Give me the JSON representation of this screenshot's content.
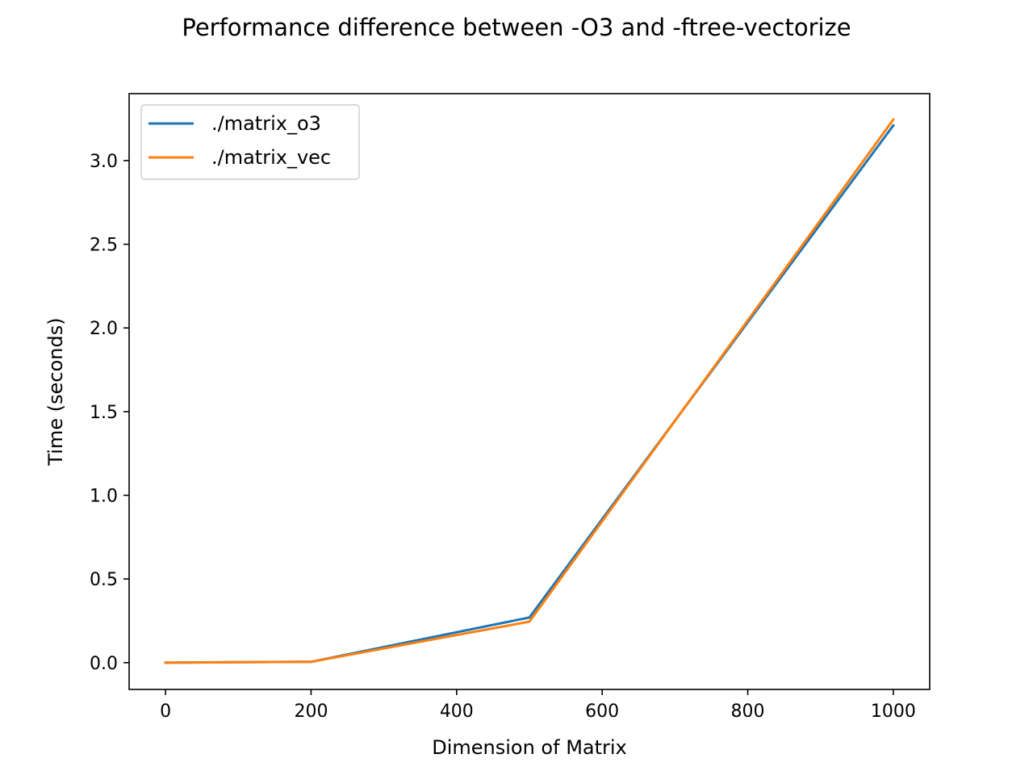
{
  "chart_data": {
    "type": "line",
    "title": "Performance difference between -O3 and -ftree-vectorize",
    "xlabel": "Dimension of Matrix",
    "ylabel": "Time (seconds)",
    "xlim": [
      -50,
      1050
    ],
    "ylim": [
      -0.16,
      3.4
    ],
    "xticks": [
      0,
      200,
      400,
      600,
      800,
      1000
    ],
    "xtick_labels": [
      "0",
      "200",
      "400",
      "600",
      "800",
      "1000"
    ],
    "yticks": [
      0.0,
      0.5,
      1.0,
      1.5,
      2.0,
      2.5,
      3.0
    ],
    "ytick_labels": [
      "0.0",
      "0.5",
      "1.0",
      "1.5",
      "2.0",
      "2.5",
      "3.0"
    ],
    "grid": false,
    "legend_position": "top-left",
    "x": [
      0,
      200,
      500,
      1000
    ],
    "series": [
      {
        "name": "./matrix_o3",
        "color": "#1f77b4",
        "values": [
          0.0,
          0.005,
          0.27,
          3.21
        ]
      },
      {
        "name": "./matrix_vec",
        "color": "#ff7f0e",
        "values": [
          0.0,
          0.005,
          0.245,
          3.245
        ]
      }
    ]
  }
}
